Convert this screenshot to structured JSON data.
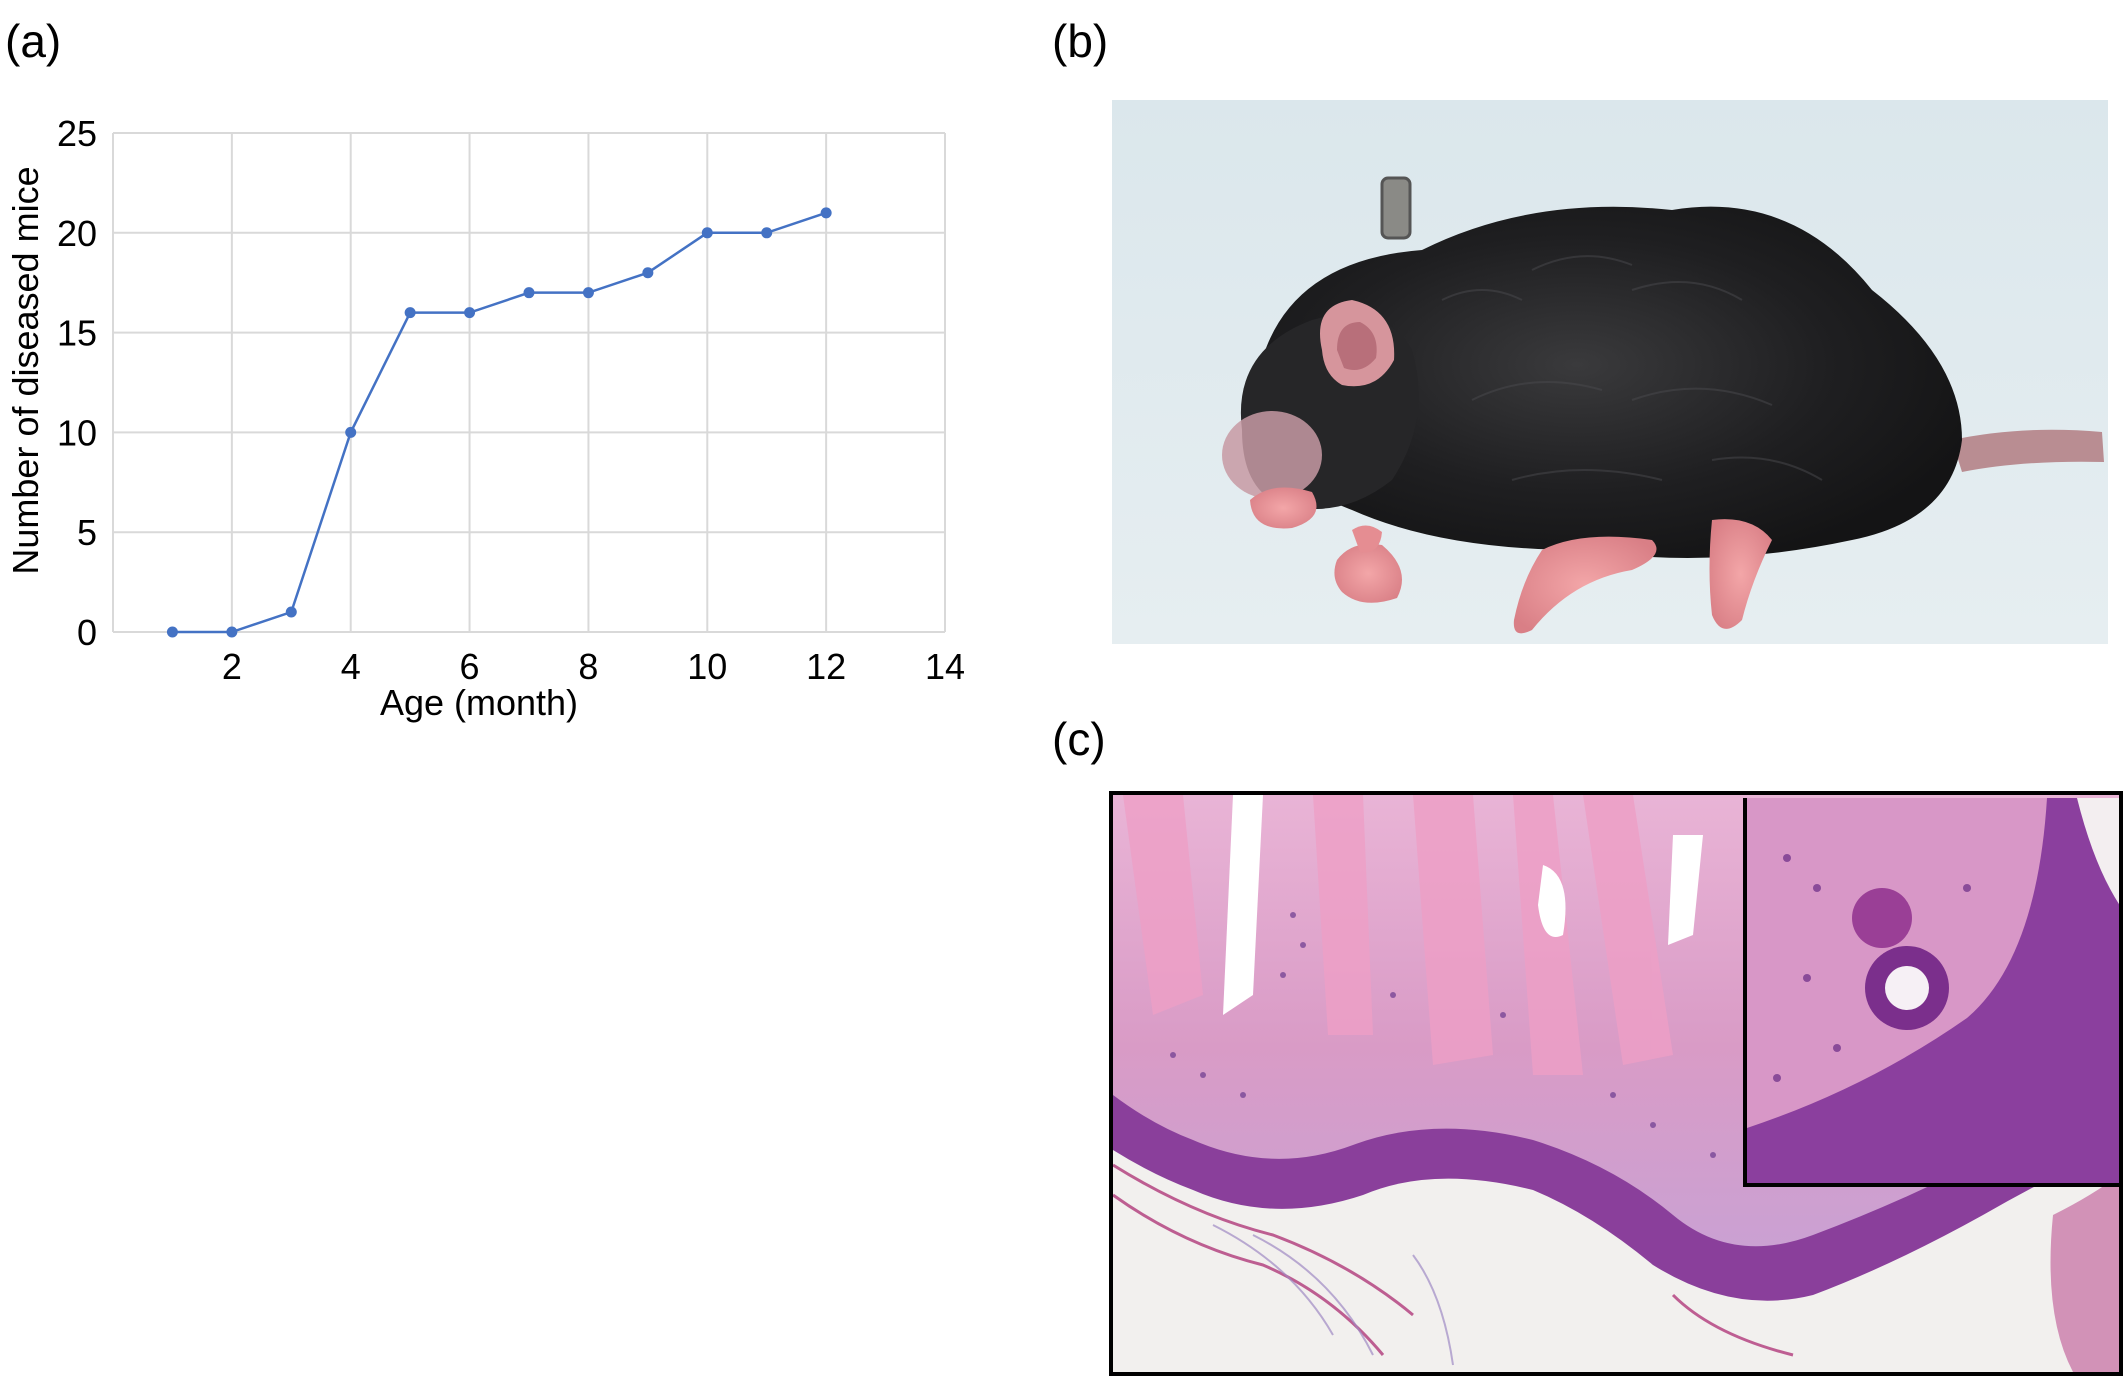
{
  "labels": {
    "a": "(a)",
    "b": "(b)",
    "c": "(c)"
  },
  "chart_data": {
    "type": "line",
    "title": "",
    "xlabel": "Age (month)",
    "ylabel": "Number of diseased mice",
    "xlim": [
      0,
      14
    ],
    "ylim": [
      0,
      25
    ],
    "xticks": [
      2,
      4,
      6,
      8,
      10,
      12,
      14
    ],
    "yticks": [
      0,
      5,
      10,
      15,
      20,
      25
    ],
    "grid": true,
    "color": "#4472c4",
    "x": [
      1,
      2,
      3,
      4,
      5,
      6,
      7,
      8,
      9,
      10,
      11,
      12
    ],
    "y": [
      0,
      0,
      1,
      10,
      16,
      16,
      17,
      17,
      18,
      20,
      20,
      21
    ]
  },
  "panel_b": {
    "description_icon": "mouse-photo"
  },
  "panel_c": {
    "description_icon": "histology-photo"
  }
}
